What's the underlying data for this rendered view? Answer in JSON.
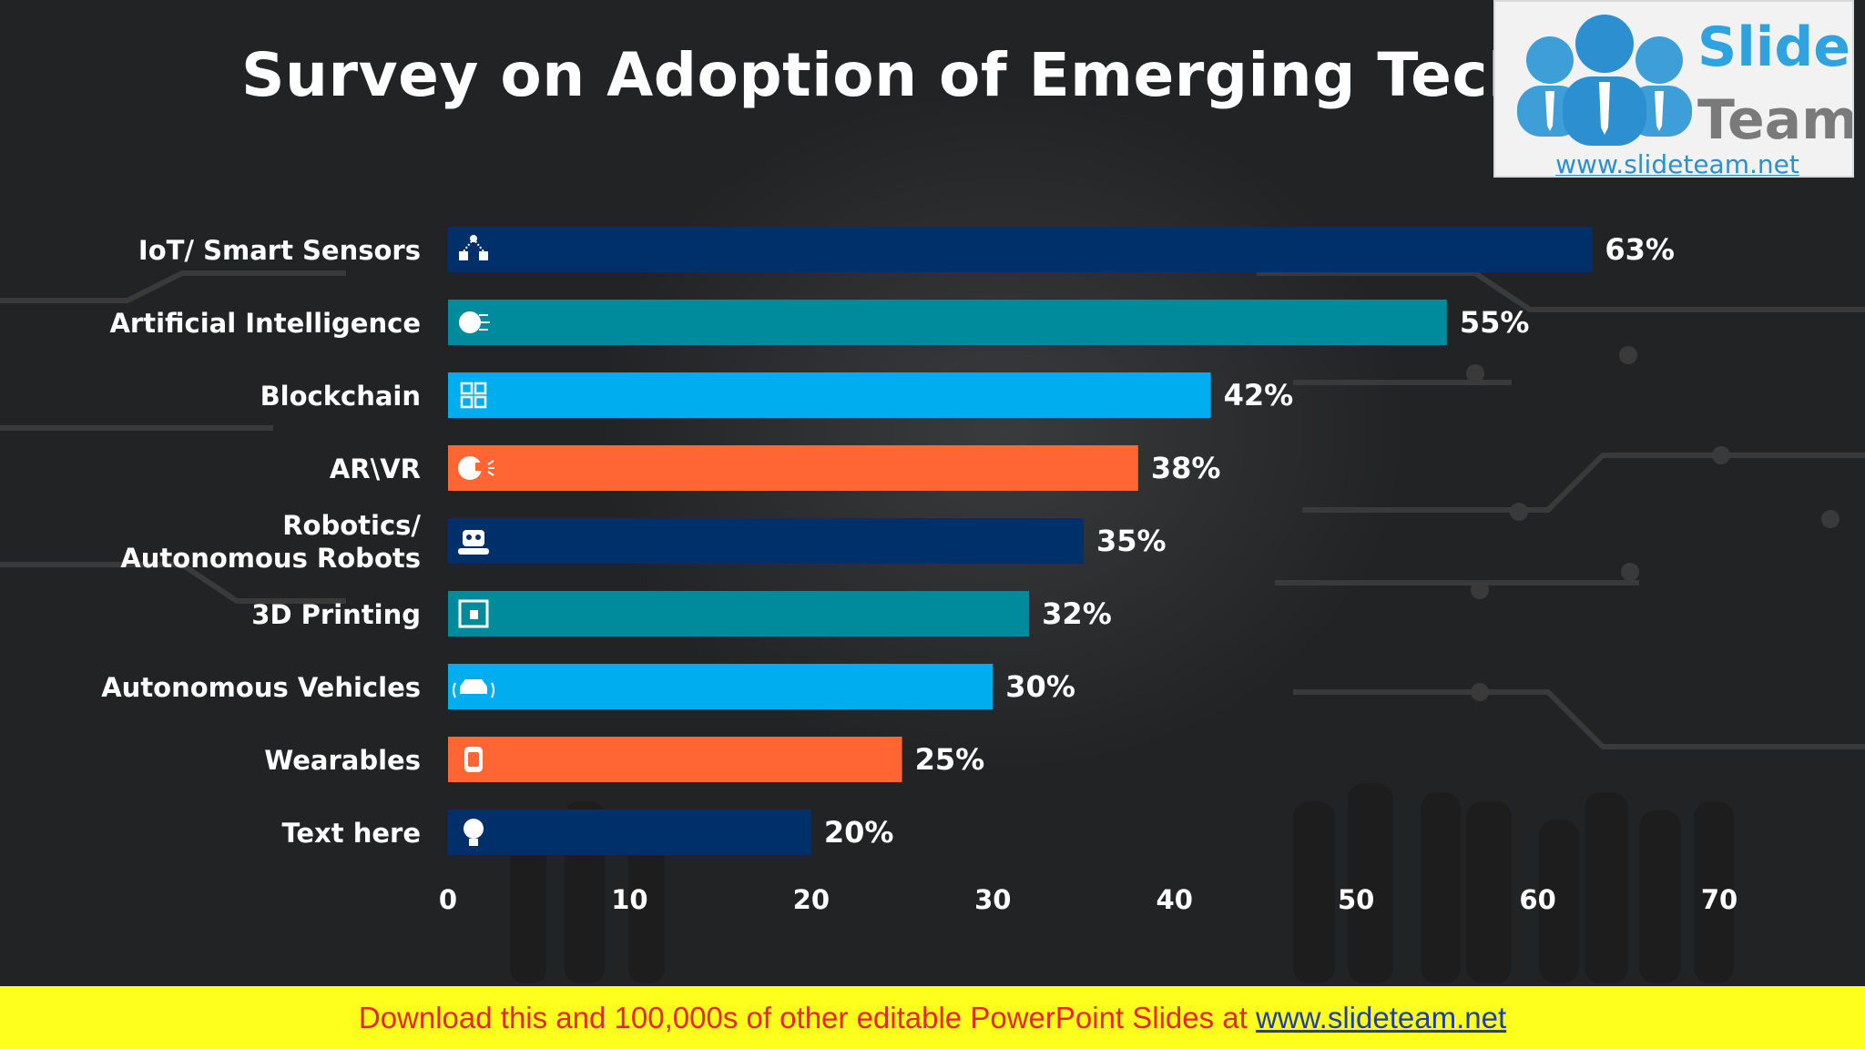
{
  "slide": {
    "title": "Survey on Adoption of Emerging Technologies",
    "logo": {
      "word1": "Slide",
      "word2": "Team",
      "url": "www.slideteam.net"
    },
    "footer": {
      "text": "Download this and 100,000s of other editable PowerPoint Slides at ",
      "link": "www.slideteam.net"
    }
  },
  "colors": {
    "navy": "#00306a",
    "teal": "#008b9c",
    "sky": "#00aeef",
    "orange": "#ff6634"
  },
  "chart_data": {
    "type": "bar",
    "orientation": "horizontal",
    "title": "Survey on Adoption of Emerging Technologies",
    "xlim": [
      0,
      70
    ],
    "x_ticks": [
      0,
      10,
      20,
      30,
      40,
      50,
      60,
      70
    ],
    "grid": false,
    "legend": "none",
    "categories": [
      [
        "IoT/ Smart Sensors"
      ],
      [
        "Artificial Intelligence"
      ],
      [
        "Blockchain"
      ],
      [
        "AR\\VR"
      ],
      [
        "Robotics/",
        "Autonomous Robots"
      ],
      [
        "3D Printing"
      ],
      [
        "Autonomous Vehicles"
      ],
      [
        "Wearables"
      ],
      [
        "Text here"
      ]
    ],
    "values": [
      63,
      55,
      42,
      38,
      35,
      32,
      30,
      25,
      20
    ],
    "value_labels": [
      "63%",
      "55%",
      "42%",
      "38%",
      "35%",
      "32%",
      "30%",
      "25%",
      "20%"
    ],
    "bar_colors": [
      "#00306a",
      "#008b9c",
      "#00aeef",
      "#ff6634",
      "#00306a",
      "#008b9c",
      "#00aeef",
      "#ff6634",
      "#00306a"
    ],
    "icons": [
      "iot-network-icon",
      "ai-brain-icon",
      "blockchain-icon",
      "vr-headset-icon",
      "robot-icon",
      "3d-printer-icon",
      "autonomous-car-icon",
      "smartwatch-icon",
      "lightbulb-icon"
    ]
  }
}
